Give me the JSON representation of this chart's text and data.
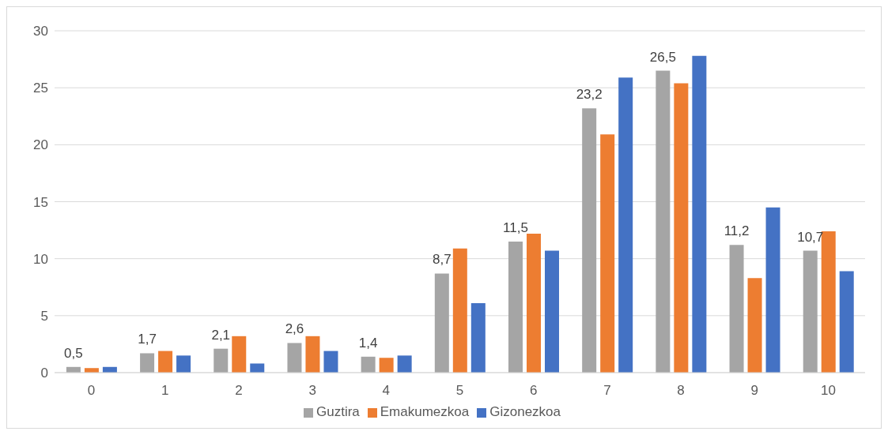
{
  "chart_data": {
    "type": "bar",
    "categories": [
      "0",
      "1",
      "2",
      "3",
      "4",
      "5",
      "6",
      "7",
      "8",
      "9",
      "10"
    ],
    "series": [
      {
        "name": "Guztira",
        "color": "#a5a5a5",
        "values": [
          0.5,
          1.7,
          2.1,
          2.6,
          1.4,
          8.7,
          11.5,
          23.2,
          26.5,
          11.2,
          10.7
        ],
        "value_labels": [
          "0,5",
          "1,7",
          "2,1",
          "2,6",
          "1,4",
          "8,7",
          "11,5",
          "23,2",
          "26,5",
          "11,2",
          "10,7"
        ]
      },
      {
        "name": "Emakumezkoa",
        "color": "#ed7d31",
        "values": [
          0.4,
          1.9,
          3.2,
          3.2,
          1.3,
          10.9,
          12.2,
          20.9,
          25.4,
          8.3,
          12.4
        ]
      },
      {
        "name": "Gizonezkoa",
        "color": "#4472c4",
        "values": [
          0.5,
          1.5,
          0.8,
          1.9,
          1.5,
          6.1,
          10.7,
          25.9,
          27.8,
          14.5,
          8.9
        ]
      }
    ],
    "ylim": [
      0,
      30
    ],
    "yticks": [
      0,
      5,
      10,
      15,
      20,
      25,
      30
    ],
    "grid": "y",
    "legend": "bottom"
  }
}
